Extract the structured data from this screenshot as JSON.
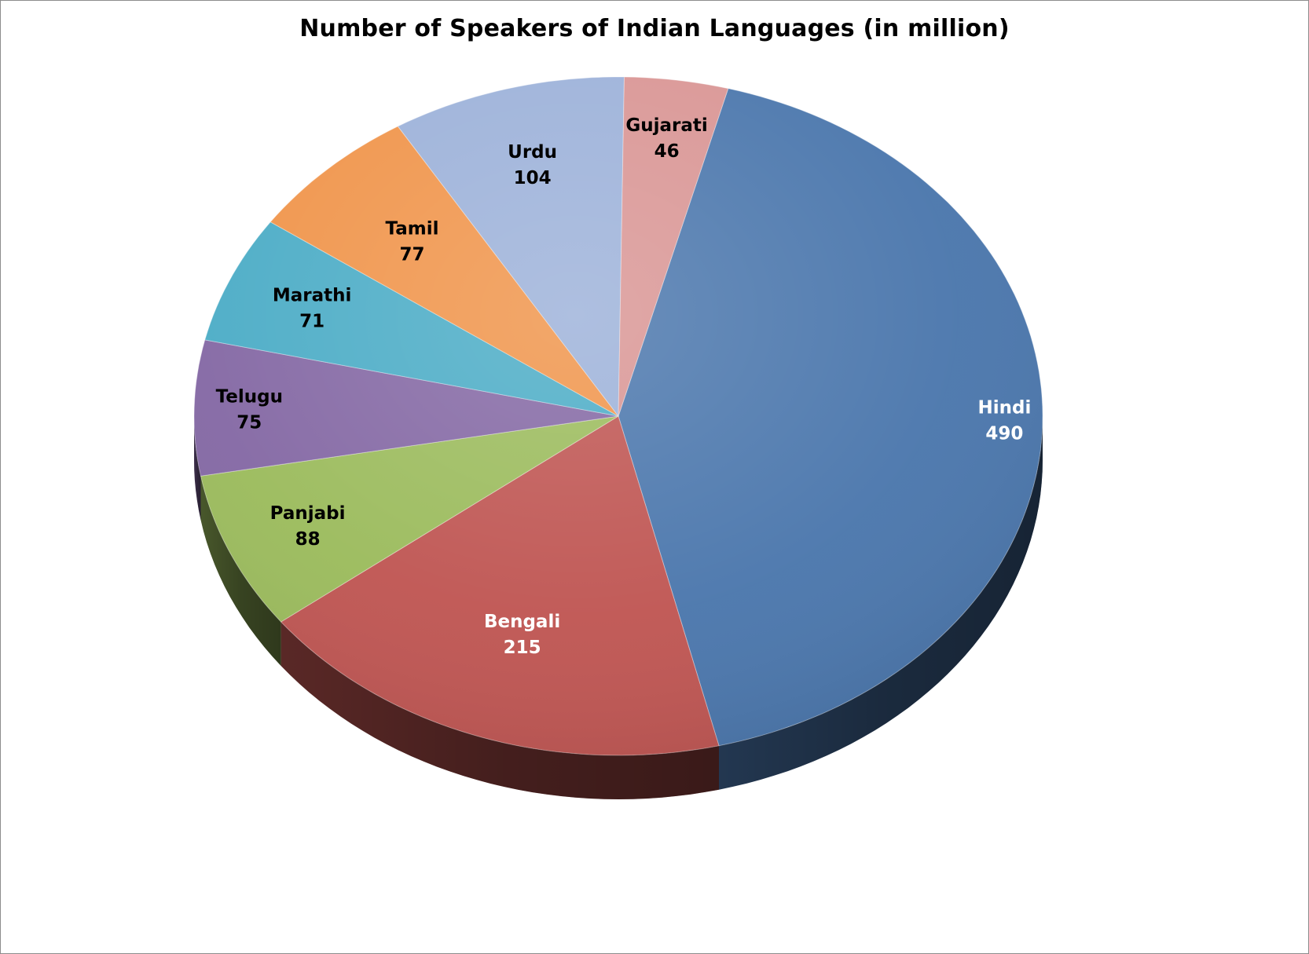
{
  "chart_data": {
    "type": "pie",
    "title": "Number of Speakers of Indian Languages (in million)",
    "categories": [
      "Hindi",
      "Bengali",
      "Panjabi",
      "Telugu",
      "Marathi",
      "Tamil",
      "Urdu",
      "Gujarati"
    ],
    "values": [
      490,
      215,
      88,
      75,
      71,
      77,
      104,
      46
    ],
    "colors": [
      "#4a76ac",
      "#bf5552",
      "#9bbb5c",
      "#8468a4",
      "#4bacc6",
      "#f0944a",
      "#9cb1d9",
      "#d99594"
    ],
    "label_colors": [
      "#ffffff",
      "#ffffff",
      "#000000",
      "#000000",
      "#000000",
      "#000000",
      "#000000",
      "#000000"
    ],
    "style": "3d-tilted",
    "legend": "none",
    "data_labels": "category and value inside slice"
  }
}
